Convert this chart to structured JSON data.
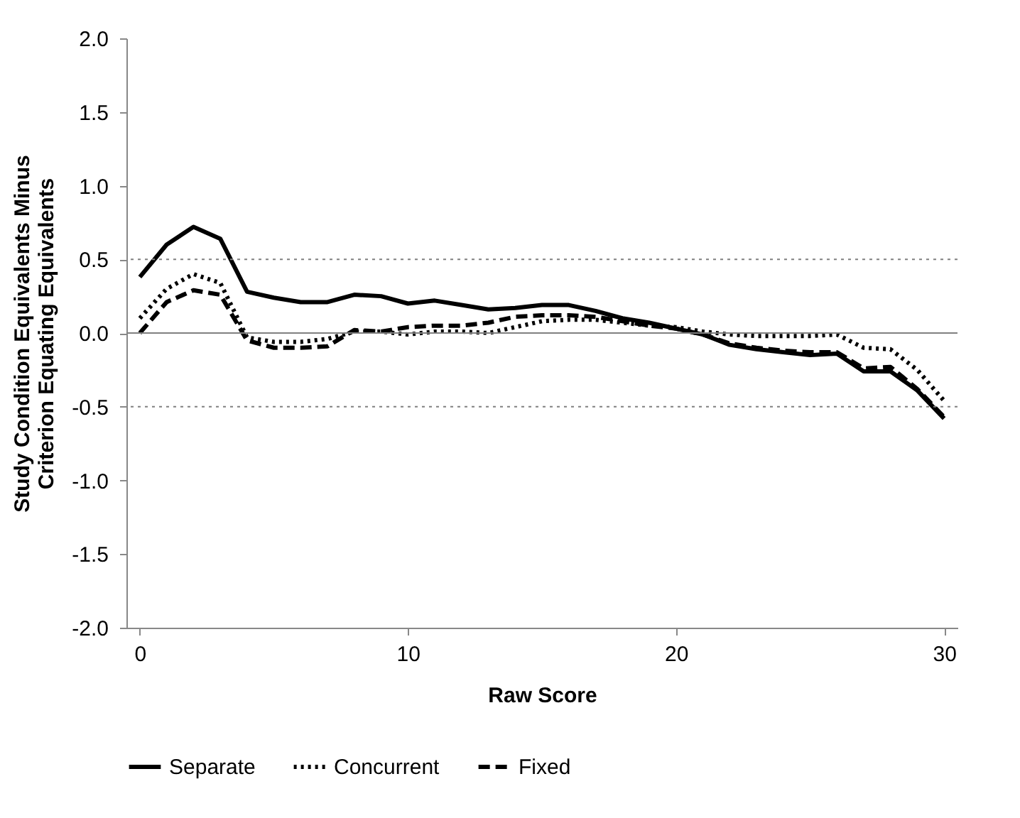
{
  "chart_data": {
    "type": "line",
    "xlabel": "Raw Score",
    "ylabel": "Study Condition Equivalents Minus\nCriterion Equating  Equivalents",
    "x": [
      0,
      1,
      2,
      3,
      4,
      5,
      6,
      7,
      8,
      9,
      10,
      11,
      12,
      13,
      14,
      15,
      16,
      17,
      18,
      19,
      20,
      21,
      22,
      23,
      24,
      25,
      26,
      27,
      28,
      29,
      30
    ],
    "series": [
      {
        "name": "Separate",
        "color": "#000000",
        "line_style": "solid",
        "values": [
          0.38,
          0.6,
          0.72,
          0.64,
          0.28,
          0.24,
          0.21,
          0.21,
          0.26,
          0.25,
          0.2,
          0.22,
          0.19,
          0.16,
          0.17,
          0.19,
          0.19,
          0.15,
          0.1,
          0.07,
          0.03,
          -0.01,
          -0.08,
          -0.11,
          -0.13,
          -0.15,
          -0.14,
          -0.26,
          -0.26,
          -0.39,
          -0.58
        ]
      },
      {
        "name": "Concurrent",
        "color": "#000000",
        "line_style": "dotted",
        "values": [
          0.1,
          0.3,
          0.4,
          0.34,
          -0.03,
          -0.06,
          -0.06,
          -0.04,
          0.01,
          0.01,
          -0.01,
          0.01,
          0.01,
          0,
          0.04,
          0.08,
          0.09,
          0.09,
          0.07,
          0.05,
          0.04,
          0.01,
          -0.01,
          -0.02,
          -0.02,
          -0.02,
          -0.01,
          -0.1,
          -0.11,
          -0.25,
          -0.46
        ]
      },
      {
        "name": "Fixed",
        "color": "#000000",
        "line_style": "dashed",
        "values": [
          0,
          0.21,
          0.29,
          0.26,
          -0.05,
          -0.1,
          -0.1,
          -0.09,
          0.02,
          0.01,
          0.04,
          0.05,
          0.05,
          0.07,
          0.11,
          0.12,
          0.12,
          0.11,
          0.08,
          0.05,
          0.03,
          -0.01,
          -0.07,
          -0.1,
          -0.12,
          -0.13,
          -0.13,
          -0.24,
          -0.23,
          -0.38,
          -0.57
        ]
      }
    ],
    "xlim": [
      -0.5,
      30.5
    ],
    "xticks": [
      0,
      10,
      20,
      30
    ],
    "ylim": [
      -2,
      2
    ],
    "yticks": [
      {
        "value": -2,
        "label": "-2.0"
      },
      -1.5,
      {
        "value": -1,
        "label": "-1.0"
      },
      -0.5,
      {
        "value": 0,
        "label": "0.0"
      },
      0.5,
      {
        "value": 1,
        "label": "1.0"
      },
      1.5,
      {
        "value": 2,
        "label": "2.0"
      }
    ],
    "ref_lines": [
      {
        "axis": "y",
        "value": 0.5,
        "color": "#808080",
        "line_style": "dotted"
      },
      {
        "axis": "y",
        "value": 0,
        "color": "#808080",
        "line_style": "solid"
      },
      {
        "axis": "y",
        "value": -0.5,
        "color": "#808080",
        "line_style": "dotted"
      }
    ],
    "grid": false,
    "legend": "bottom",
    "marker": "none"
  }
}
